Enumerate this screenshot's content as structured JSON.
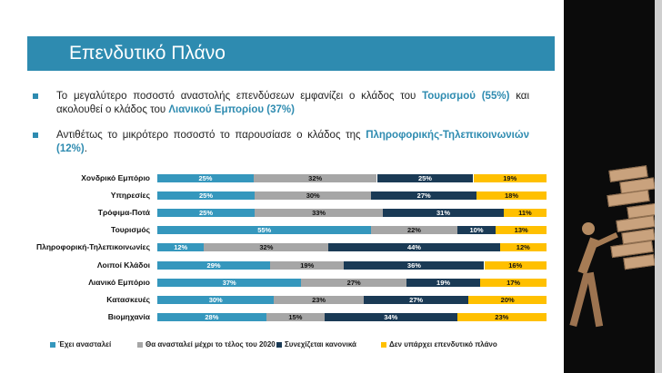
{
  "slide": {
    "title": "Επενδυτικό Πλάνο",
    "bullets": [
      {
        "parts": [
          {
            "text": "Το μεγαλύτερο ποσοστό αναστολής επενδύσεων εμφανίζει ο κλάδος του ",
            "hl": false
          },
          {
            "text": "Τουρισμού",
            "hl": true
          },
          {
            "text": " ",
            "hl": false
          },
          {
            "text": "(55%)",
            "hl": true
          },
          {
            "text": " και ακολουθεί ο κλάδος του ",
            "hl": false
          },
          {
            "text": "Λιανικού Εμπορίου",
            "hl": true
          },
          {
            "text": " ",
            "hl": false
          },
          {
            "text": "(37%)",
            "hl": true
          }
        ]
      },
      {
        "parts": [
          {
            "text": "Αντιθέτως το μικρότερο ποσοστό το παρουσίασε ο κλάδος της ",
            "hl": false
          },
          {
            "text": "Πληροφορικής-Τηλεπικοινωνιών",
            "hl": true
          },
          {
            "text": " ",
            "hl": false
          },
          {
            "text": "(12%)",
            "hl": true
          },
          {
            "text": ".",
            "hl": false
          }
        ]
      }
    ]
  },
  "colors": {
    "accent": "#2e8bb0",
    "series": [
      "#3597bd",
      "#a6a6a6",
      "#1a3a55",
      "#ffc000"
    ],
    "label_colors": [
      "#ffffff",
      "#111111",
      "#ffffff",
      "#111111"
    ]
  },
  "chart_data": {
    "type": "bar",
    "orientation": "horizontal",
    "stacked": true,
    "percent": true,
    "categories": [
      "Χονδρικό Εμπόριο",
      "Υπηρεσίες",
      "Τρόφιμα-Ποτά",
      "Τουρισμός",
      "Πληροφορική-Τηλεπικοινωνίες",
      "Λοιποί Κλάδοι",
      "Λιανικό Εμπόριο",
      "Κατασκευές",
      "Βιομηχανία"
    ],
    "series": [
      {
        "name": "Έχει ανασταλεί",
        "values": [
          25,
          25,
          25,
          55,
          12,
          29,
          37,
          30,
          28
        ]
      },
      {
        "name": "Θα ανασταλεί μέχρι το τέλος του 2020",
        "values": [
          32,
          30,
          33,
          22,
          32,
          19,
          27,
          23,
          15
        ]
      },
      {
        "name": "Συνεχίζεται κανονικά",
        "values": [
          25,
          27,
          31,
          10,
          44,
          36,
          19,
          27,
          34
        ]
      },
      {
        "name": "Δεν υπάρχει επενδυτικό πλάνο",
        "values": [
          19,
          18,
          11,
          13,
          12,
          16,
          17,
          20,
          23
        ]
      }
    ],
    "legend": "bottom"
  }
}
